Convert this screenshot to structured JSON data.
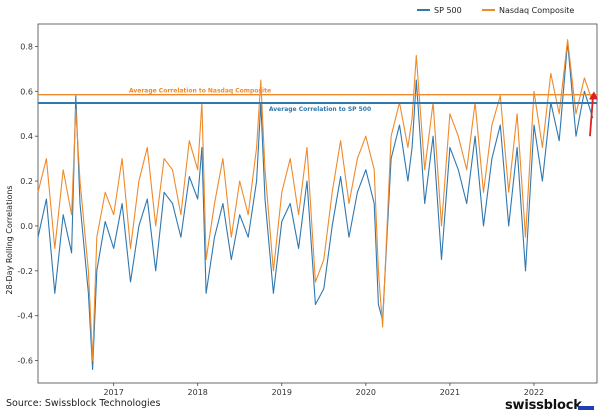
{
  "chart_data": {
    "type": "line",
    "ylabel": "28-Day Rolling Correlations",
    "ylim": [
      -0.7,
      0.9
    ],
    "xlim": [
      2016.1,
      2022.75
    ],
    "yticks": [
      "0.8",
      "0.6",
      "0.4",
      "0.2",
      "0.0",
      "-0.2",
      "-0.4",
      "-0.6"
    ],
    "ytick_values": [
      0.8,
      0.6,
      0.4,
      0.2,
      0.0,
      -0.2,
      -0.4,
      -0.6
    ],
    "xticks": [
      "2017",
      "2018",
      "2019",
      "2020",
      "2021",
      "2022"
    ],
    "xtick_values": [
      2017,
      2018,
      2019,
      2020,
      2021,
      2022
    ],
    "legend": [
      "SP 500",
      "Nasdaq Composite"
    ],
    "legend_position": "top-right",
    "series": [
      {
        "name": "SP 500",
        "color": "#2f78b0",
        "x": [
          2016.1,
          2016.2,
          2016.3,
          2016.4,
          2016.5,
          2016.55,
          2016.6,
          2016.7,
          2016.75,
          2016.8,
          2016.9,
          2017.0,
          2017.1,
          2017.2,
          2017.3,
          2017.4,
          2017.5,
          2017.6,
          2017.7,
          2017.8,
          2017.9,
          2018.0,
          2018.05,
          2018.1,
          2018.2,
          2018.3,
          2018.4,
          2018.5,
          2018.6,
          2018.7,
          2018.75,
          2018.8,
          2018.9,
          2019.0,
          2019.1,
          2019.2,
          2019.3,
          2019.4,
          2019.5,
          2019.6,
          2019.7,
          2019.8,
          2019.9,
          2020.0,
          2020.1,
          2020.15,
          2020.2,
          2020.3,
          2020.4,
          2020.5,
          2020.55,
          2020.6,
          2020.7,
          2020.8,
          2020.9,
          2021.0,
          2021.1,
          2021.2,
          2021.3,
          2021.4,
          2021.5,
          2021.6,
          2021.7,
          2021.8,
          2021.9,
          2022.0,
          2022.1,
          2022.2,
          2022.3,
          2022.4,
          2022.5,
          2022.6,
          2022.7
        ],
        "values": [
          -0.05,
          0.12,
          -0.3,
          0.05,
          -0.12,
          0.58,
          0.1,
          -0.3,
          -0.64,
          -0.2,
          0.02,
          -0.1,
          0.1,
          -0.25,
          0.0,
          0.12,
          -0.2,
          0.15,
          0.1,
          -0.05,
          0.22,
          0.12,
          0.35,
          -0.3,
          -0.05,
          0.1,
          -0.15,
          0.05,
          -0.05,
          0.2,
          0.55,
          0.12,
          -0.3,
          0.02,
          0.1,
          -0.1,
          0.2,
          -0.35,
          -0.28,
          0.0,
          0.22,
          -0.05,
          0.15,
          0.25,
          0.1,
          -0.35,
          -0.42,
          0.3,
          0.45,
          0.2,
          0.35,
          0.65,
          0.1,
          0.4,
          -0.15,
          0.35,
          0.25,
          0.1,
          0.4,
          0.0,
          0.3,
          0.45,
          0.0,
          0.35,
          -0.2,
          0.45,
          0.2,
          0.55,
          0.38,
          0.82,
          0.4,
          0.6,
          0.48
        ]
      },
      {
        "name": "Nasdaq Composite",
        "color": "#ef8a2a",
        "x": [
          2016.1,
          2016.2,
          2016.3,
          2016.4,
          2016.5,
          2016.55,
          2016.6,
          2016.7,
          2016.75,
          2016.8,
          2016.9,
          2017.0,
          2017.1,
          2017.2,
          2017.3,
          2017.4,
          2017.5,
          2017.6,
          2017.7,
          2017.8,
          2017.9,
          2018.0,
          2018.05,
          2018.1,
          2018.2,
          2018.3,
          2018.4,
          2018.5,
          2018.6,
          2018.7,
          2018.75,
          2018.8,
          2018.9,
          2019.0,
          2019.1,
          2019.2,
          2019.3,
          2019.4,
          2019.5,
          2019.6,
          2019.7,
          2019.8,
          2019.9,
          2020.0,
          2020.1,
          2020.15,
          2020.2,
          2020.3,
          2020.4,
          2020.5,
          2020.55,
          2020.6,
          2020.7,
          2020.8,
          2020.9,
          2021.0,
          2021.1,
          2021.2,
          2021.3,
          2021.4,
          2021.5,
          2021.6,
          2021.7,
          2021.8,
          2021.9,
          2022.0,
          2022.1,
          2022.2,
          2022.3,
          2022.4,
          2022.5,
          2022.6,
          2022.7
        ],
        "values": [
          0.15,
          0.3,
          -0.1,
          0.25,
          0.05,
          0.52,
          0.2,
          -0.2,
          -0.6,
          -0.05,
          0.15,
          0.05,
          0.3,
          -0.1,
          0.2,
          0.35,
          0.0,
          0.3,
          0.25,
          0.05,
          0.38,
          0.25,
          0.55,
          -0.15,
          0.1,
          0.3,
          -0.05,
          0.2,
          0.05,
          0.35,
          0.65,
          0.25,
          -0.2,
          0.15,
          0.3,
          0.05,
          0.35,
          -0.25,
          -0.15,
          0.15,
          0.38,
          0.1,
          0.3,
          0.4,
          0.25,
          -0.2,
          -0.45,
          0.4,
          0.55,
          0.35,
          0.48,
          0.76,
          0.25,
          0.55,
          0.0,
          0.5,
          0.4,
          0.25,
          0.55,
          0.15,
          0.45,
          0.58,
          0.15,
          0.5,
          -0.05,
          0.6,
          0.35,
          0.68,
          0.5,
          0.83,
          0.5,
          0.66,
          0.55
        ]
      }
    ],
    "reference_lines": [
      {
        "label": "Average Correlation to Nasdaq Composite",
        "value": 0.585,
        "color": "#ef8a2a"
      },
      {
        "label": "Average Correlation to SP 500",
        "value": 0.548,
        "color": "#2f78b0"
      }
    ],
    "arrow_color": "#e02020"
  },
  "footer": {
    "source": "Source: Swissblock Technologies",
    "brand": "swissblock"
  }
}
